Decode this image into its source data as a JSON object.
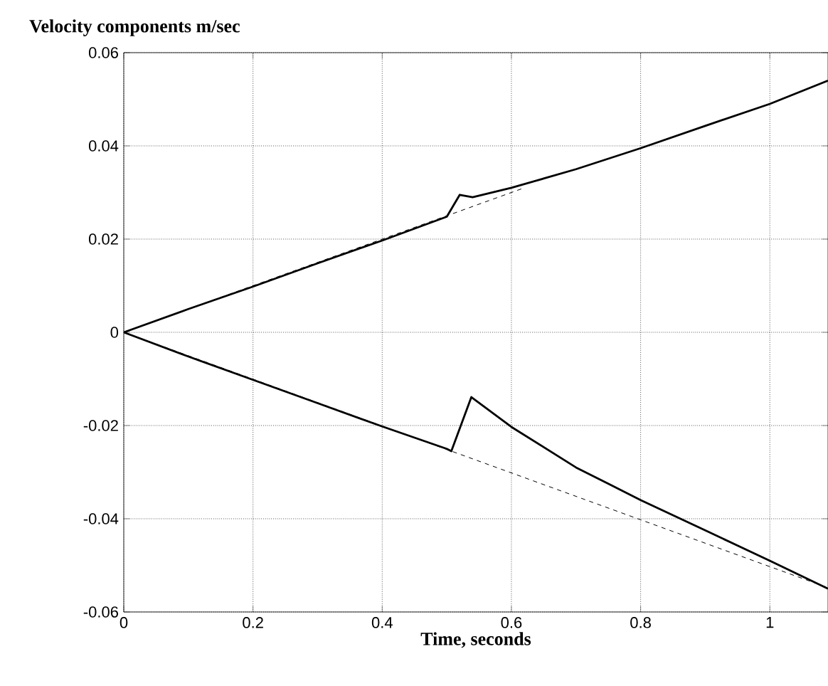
{
  "chart_data": {
    "type": "line",
    "title": "Velocity components m/sec",
    "xlabel": "Time, seconds",
    "xlim": [
      0,
      1.09
    ],
    "ylim": [
      -0.06,
      0.06
    ],
    "xticks": [
      0,
      0.2,
      0.4,
      0.6,
      0.8,
      1
    ],
    "yticks": [
      -0.06,
      -0.04,
      -0.02,
      0,
      0.02,
      0.04,
      0.06
    ],
    "grid": true,
    "series": [
      {
        "color": "#000000",
        "line_style": "solid",
        "x": [
          0,
          0.1,
          0.2,
          0.3,
          0.4,
          0.5,
          0.52,
          0.54,
          0.6,
          0.7,
          0.8,
          0.9,
          1.0,
          1.09
        ],
        "values": [
          0,
          0.005,
          0.0098,
          0.0148,
          0.0197,
          0.0248,
          0.0295,
          0.029,
          0.031,
          0.035,
          0.0395,
          0.0443,
          0.049,
          0.054
        ]
      },
      {
        "color": "#000000",
        "line_style": "dashed",
        "x": [
          0,
          0.62
        ],
        "values": [
          0,
          0.031
        ]
      },
      {
        "color": "#000000",
        "line_style": "solid",
        "x": [
          0,
          0.1,
          0.2,
          0.3,
          0.4,
          0.5,
          0.507,
          0.538,
          0.6,
          0.7,
          0.75,
          0.8,
          0.9,
          1.0,
          1.09
        ],
        "values": [
          0,
          -0.0052,
          -0.0102,
          -0.0152,
          -0.0202,
          -0.025,
          -0.0255,
          -0.0139,
          -0.0203,
          -0.029,
          -0.0325,
          -0.036,
          -0.0425,
          -0.049,
          -0.055
        ]
      },
      {
        "color": "#000000",
        "line_style": "dashed",
        "x": [
          0,
          1.09
        ],
        "values": [
          0,
          -0.0548
        ]
      }
    ]
  }
}
